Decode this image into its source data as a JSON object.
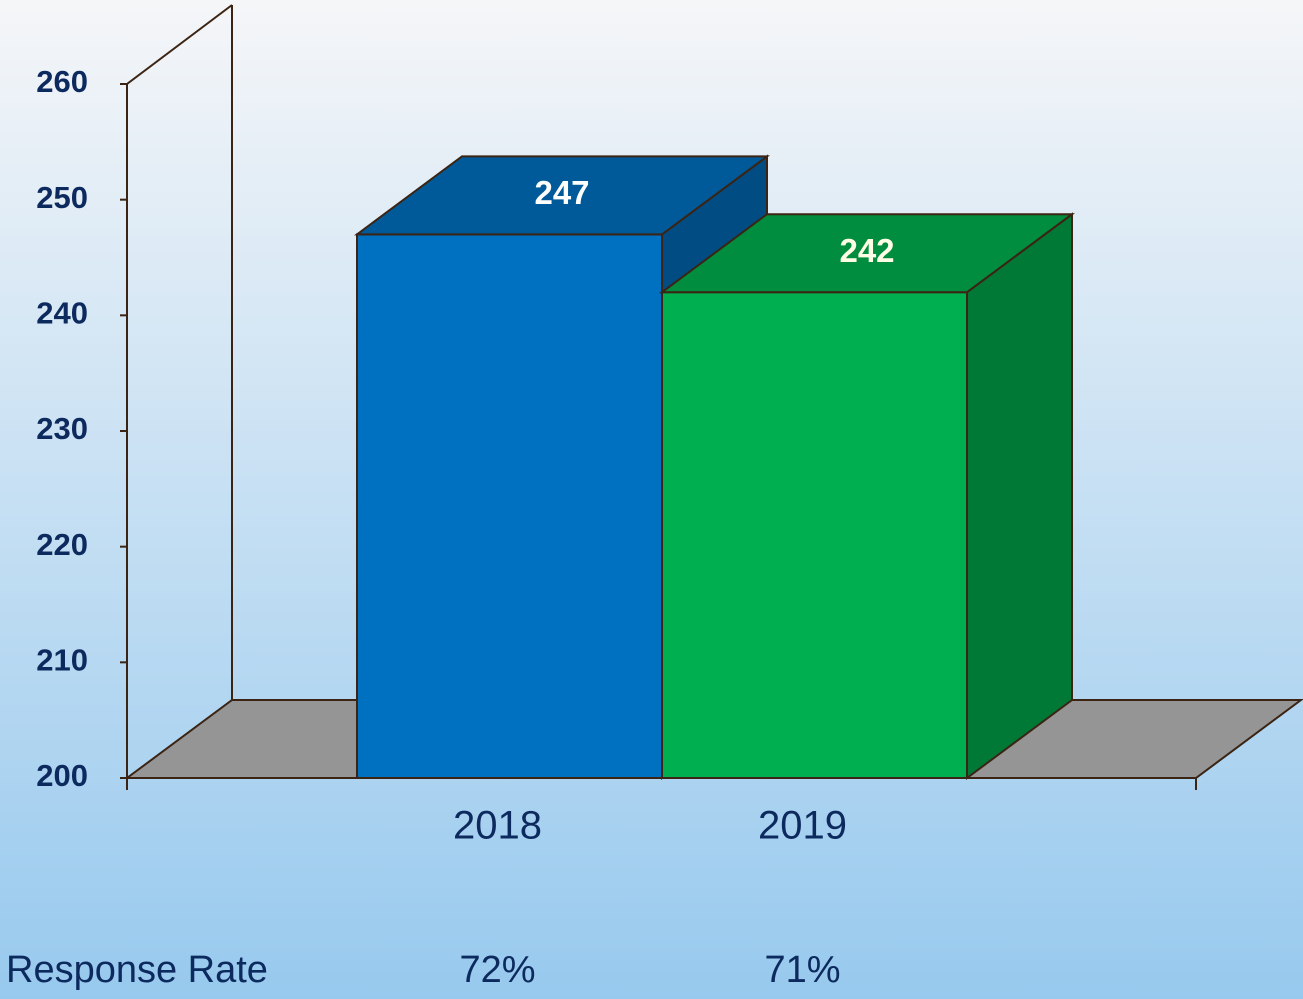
{
  "chart_data": {
    "type": "bar3d",
    "categories": [
      "2018",
      "2019"
    ],
    "values": [
      247,
      242
    ],
    "colors": [
      "#0070c0",
      "#00b050"
    ],
    "ylim": [
      200,
      260
    ],
    "yticks": [
      200,
      210,
      220,
      230,
      240,
      250,
      260
    ],
    "response_rate": {
      "label": "Response Rate",
      "values": [
        72,
        71
      ],
      "value_labels": [
        "72%",
        "71%"
      ]
    }
  }
}
